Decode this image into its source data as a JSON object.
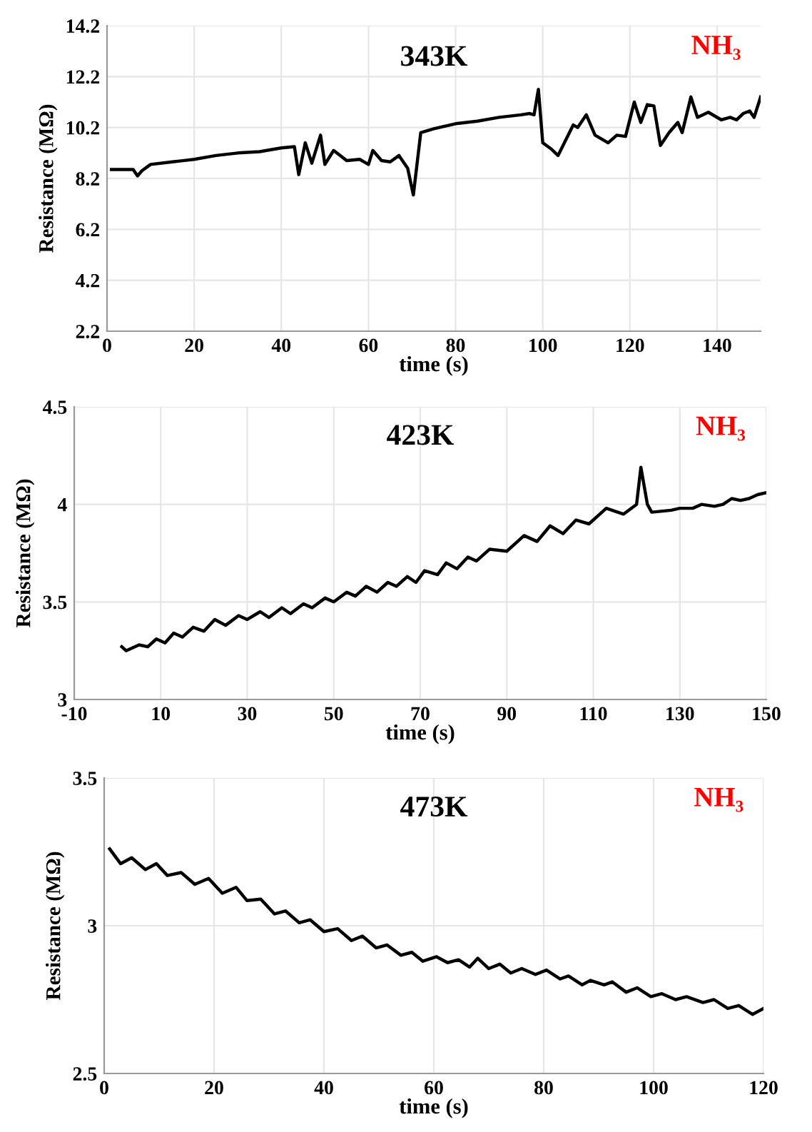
{
  "chart_data": [
    {
      "type": "line",
      "title": "343K",
      "xlabel": "time (s)",
      "ylabel": "Resistance (MΩ)",
      "annotations": [
        "NH₃"
      ],
      "grid": true,
      "xlim": [
        0,
        150
      ],
      "ylim": [
        2.2,
        14.2
      ],
      "xticks": [
        0,
        20,
        40,
        60,
        80,
        100,
        120,
        140
      ],
      "yticks": [
        2.2,
        4.2,
        6.2,
        8.2,
        10.2,
        12.2,
        14.2
      ],
      "series": [
        {
          "color": "#000000",
          "x": [
            1,
            6,
            7,
            8,
            10,
            15,
            20,
            25,
            30,
            35,
            40,
            43,
            44,
            45.5,
            47,
            49,
            50,
            52,
            55,
            58,
            60,
            61,
            63,
            65,
            67,
            69,
            70.3,
            72,
            75,
            80,
            85,
            90,
            95,
            97,
            98,
            99,
            100,
            102,
            103.5,
            107,
            108,
            110,
            112,
            115,
            117,
            119,
            121,
            122.5,
            124,
            125.5,
            127,
            129,
            131,
            132,
            134,
            135.5,
            138,
            141,
            143,
            144.5,
            146,
            147.5,
            148.5,
            150
          ],
          "values": [
            8.55,
            8.55,
            8.3,
            8.5,
            8.75,
            8.85,
            8.95,
            9.1,
            9.2,
            9.25,
            9.4,
            9.45,
            8.35,
            9.6,
            8.8,
            9.9,
            8.75,
            9.3,
            8.9,
            8.95,
            8.75,
            9.3,
            8.9,
            8.85,
            9.1,
            8.6,
            7.55,
            10.0,
            10.15,
            10.35,
            10.45,
            10.6,
            10.7,
            10.75,
            10.7,
            11.7,
            9.6,
            9.35,
            9.1,
            10.3,
            10.2,
            10.7,
            9.9,
            9.6,
            9.9,
            9.85,
            11.2,
            10.4,
            11.1,
            11.05,
            9.5,
            10.0,
            10.4,
            10.0,
            11.4,
            10.6,
            10.8,
            10.5,
            10.6,
            10.5,
            10.75,
            10.85,
            10.6,
            11.4
          ]
        }
      ]
    },
    {
      "type": "line",
      "title": "423K",
      "xlabel": "time (s)",
      "ylabel": "Resistance (MΩ)",
      "annotations": [
        "NH₃"
      ],
      "grid": true,
      "xlim": [
        -10,
        150
      ],
      "ylim": [
        3,
        4.5
      ],
      "xticks": [
        -10,
        10,
        30,
        50,
        70,
        90,
        110,
        130,
        150
      ],
      "yticks": [
        3,
        3.5,
        4,
        4.5
      ],
      "series": [
        {
          "color": "#000000",
          "x": [
            1,
            2,
            5,
            7,
            9,
            11,
            13,
            15,
            17.5,
            20,
            22.5,
            25,
            28,
            30,
            33,
            35,
            38,
            40,
            43,
            45,
            48,
            50,
            53,
            55,
            57.5,
            60,
            62.5,
            64.5,
            67,
            69,
            71,
            74,
            76,
            78.5,
            81,
            83,
            86,
            90,
            94,
            97,
            100,
            103,
            106,
            109,
            113,
            117,
            120,
            121,
            122.5,
            123.5,
            128,
            130,
            133,
            135,
            138,
            140,
            142,
            144,
            146,
            148,
            150
          ],
          "values": [
            3.27,
            3.25,
            3.28,
            3.27,
            3.31,
            3.29,
            3.34,
            3.32,
            3.37,
            3.35,
            3.41,
            3.38,
            3.43,
            3.41,
            3.45,
            3.42,
            3.47,
            3.44,
            3.49,
            3.47,
            3.52,
            3.5,
            3.55,
            3.53,
            3.58,
            3.55,
            3.6,
            3.58,
            3.63,
            3.6,
            3.66,
            3.64,
            3.7,
            3.67,
            3.73,
            3.71,
            3.77,
            3.76,
            3.84,
            3.81,
            3.89,
            3.85,
            3.92,
            3.9,
            3.98,
            3.95,
            4.0,
            4.19,
            4.0,
            3.96,
            3.97,
            3.98,
            3.98,
            4.0,
            3.99,
            4.0,
            4.03,
            4.02,
            4.03,
            4.05,
            4.06
          ]
        }
      ]
    },
    {
      "type": "line",
      "title": "473K",
      "xlabel": "time (s)",
      "ylabel": "Resistance (MΩ)",
      "annotations": [
        "NH₃"
      ],
      "grid": true,
      "xlim": [
        0,
        120
      ],
      "ylim": [
        2.5,
        3.5
      ],
      "xticks": [
        0,
        20,
        40,
        60,
        80,
        100,
        120
      ],
      "yticks": [
        2.5,
        3,
        3.5
      ],
      "series": [
        {
          "color": "#000000",
          "x": [
            1,
            3,
            5,
            7.5,
            9.5,
            11.5,
            14,
            16.5,
            19,
            21.5,
            24,
            26,
            28.5,
            31,
            33,
            35.5,
            37.5,
            40,
            42.5,
            45,
            47,
            49.5,
            51.5,
            54,
            56,
            58,
            60.5,
            62.5,
            64.5,
            66.5,
            68,
            70,
            72,
            74,
            76,
            78.5,
            80.5,
            83,
            84.5,
            87,
            88.5,
            91,
            92.5,
            95,
            97,
            99.5,
            101.5,
            104,
            106,
            109,
            111,
            113.5,
            115.5,
            118,
            120
          ],
          "values": [
            3.26,
            3.21,
            3.23,
            3.19,
            3.21,
            3.17,
            3.18,
            3.14,
            3.16,
            3.11,
            3.13,
            3.085,
            3.09,
            3.04,
            3.05,
            3.01,
            3.02,
            2.98,
            2.99,
            2.95,
            2.965,
            2.925,
            2.935,
            2.9,
            2.91,
            2.88,
            2.895,
            2.875,
            2.885,
            2.86,
            2.89,
            2.855,
            2.87,
            2.84,
            2.855,
            2.835,
            2.85,
            2.82,
            2.83,
            2.8,
            2.815,
            2.8,
            2.81,
            2.775,
            2.79,
            2.76,
            2.77,
            2.75,
            2.76,
            2.74,
            2.75,
            2.72,
            2.73,
            2.7,
            2.72
          ]
        }
      ]
    }
  ]
}
